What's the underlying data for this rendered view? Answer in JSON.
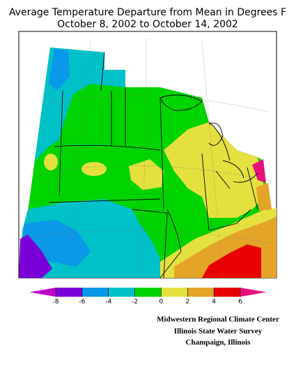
{
  "title": [
    "Average Temperature Departure from Mean in Degrees F",
    "October 8, 2002 to October 14, 2002"
  ],
  "legend": {
    "ticks": [
      -8,
      -6,
      -4,
      -2,
      0,
      2,
      4,
      6
    ],
    "colors": [
      "#c000c8",
      "#7a00d8",
      "#0a98e8",
      "#00c0c8",
      "#00d400",
      "#e4e040",
      "#e4a428",
      "#e80000",
      "#e8107c"
    ]
  },
  "credits": [
    "Midwestern Regional Climate Center",
    "Illinois State Water Survey",
    "Champaign, Illinois"
  ]
}
